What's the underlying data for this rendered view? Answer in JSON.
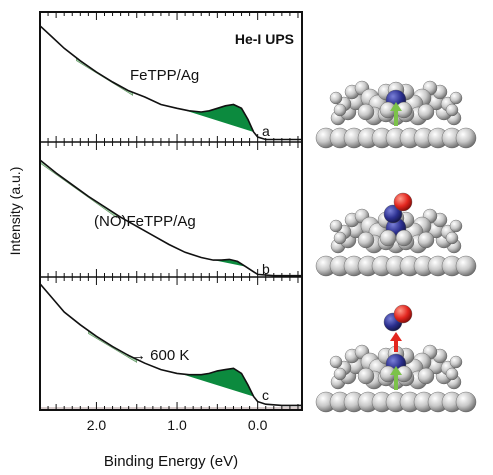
{
  "chart_data": {
    "type": "line",
    "title": "He-I UPS",
    "xlabel": "Binding Energy (eV)",
    "ylabel": "Intensity (a.u.)",
    "x_reversed": true,
    "xlim": [
      2.7,
      -0.55
    ],
    "xticks": [
      2.0,
      1.0,
      0.0
    ],
    "xtick_labels": [
      "2.0",
      "1.0",
      "0.0"
    ],
    "grid": false,
    "panels": [
      {
        "letter": "a",
        "annotation": "FeTPP/Ag",
        "spectrum": [
          [
            2.7,
            0.93
          ],
          [
            2.55,
            0.84
          ],
          [
            2.4,
            0.75
          ],
          [
            2.2,
            0.65
          ],
          [
            2.0,
            0.56
          ],
          [
            1.8,
            0.48
          ],
          [
            1.6,
            0.41
          ],
          [
            1.4,
            0.36
          ],
          [
            1.2,
            0.3
          ],
          [
            1.0,
            0.27
          ],
          [
            0.85,
            0.25
          ],
          [
            0.7,
            0.24
          ],
          [
            0.6,
            0.25
          ],
          [
            0.5,
            0.27
          ],
          [
            0.4,
            0.29
          ],
          [
            0.3,
            0.3
          ],
          [
            0.2,
            0.27
          ],
          [
            0.12,
            0.18
          ],
          [
            0.05,
            0.08
          ],
          [
            0.0,
            0.04
          ],
          [
            -0.1,
            0.02
          ],
          [
            -0.3,
            0.02
          ],
          [
            -0.55,
            0.02
          ]
        ],
        "light_fill_range": [
          1.55,
          2.25
        ],
        "dark_fill_range": [
          0.05,
          0.95
        ]
      },
      {
        "letter": "b",
        "annotation": "(NO)FeTPP/Ag",
        "spectrum": [
          [
            2.7,
            0.9
          ],
          [
            2.5,
            0.8
          ],
          [
            2.3,
            0.71
          ],
          [
            2.1,
            0.62
          ],
          [
            1.9,
            0.54
          ],
          [
            1.7,
            0.46
          ],
          [
            1.5,
            0.39
          ],
          [
            1.3,
            0.32
          ],
          [
            1.1,
            0.25
          ],
          [
            0.9,
            0.19
          ],
          [
            0.7,
            0.15
          ],
          [
            0.55,
            0.13
          ],
          [
            0.45,
            0.13
          ],
          [
            0.35,
            0.135
          ],
          [
            0.25,
            0.12
          ],
          [
            0.15,
            0.08
          ],
          [
            0.05,
            0.04
          ],
          [
            0.0,
            0.02
          ],
          [
            -0.2,
            0.01
          ],
          [
            -0.55,
            0.01
          ]
        ],
        "light_fill_range": [
          1.75,
          2.7
        ],
        "dark_fill_range": [
          0.15,
          0.6
        ]
      },
      {
        "letter": "c",
        "annotation": "→ 600 K",
        "spectrum": [
          [
            2.7,
            0.97
          ],
          [
            2.55,
            0.86
          ],
          [
            2.4,
            0.75
          ],
          [
            2.2,
            0.65
          ],
          [
            2.0,
            0.56
          ],
          [
            1.8,
            0.48
          ],
          [
            1.6,
            0.41
          ],
          [
            1.4,
            0.35
          ],
          [
            1.2,
            0.3
          ],
          [
            1.0,
            0.27
          ],
          [
            0.85,
            0.26
          ],
          [
            0.7,
            0.26
          ],
          [
            0.6,
            0.27
          ],
          [
            0.5,
            0.29
          ],
          [
            0.4,
            0.3
          ],
          [
            0.3,
            0.31
          ],
          [
            0.2,
            0.27
          ],
          [
            0.12,
            0.18
          ],
          [
            0.05,
            0.09
          ],
          [
            0.0,
            0.05
          ],
          [
            -0.1,
            0.03
          ],
          [
            -0.3,
            0.02
          ],
          [
            -0.55,
            0.02
          ]
        ],
        "light_fill_range": [
          1.5,
          2.1
        ],
        "dark_fill_range": [
          0.05,
          0.95
        ]
      }
    ],
    "colors": {
      "line": "#111111",
      "light_fill": "#a6d6ac",
      "dark_fill": "#0c8a3e",
      "baseline": "#9a7a7a",
      "atom_gray": "#c8c8c8",
      "atom_blue": "#2b2f8f",
      "atom_red": "#e3261f",
      "arrow_green": "#7cc24a",
      "arrow_red": "#e3261f"
    }
  }
}
